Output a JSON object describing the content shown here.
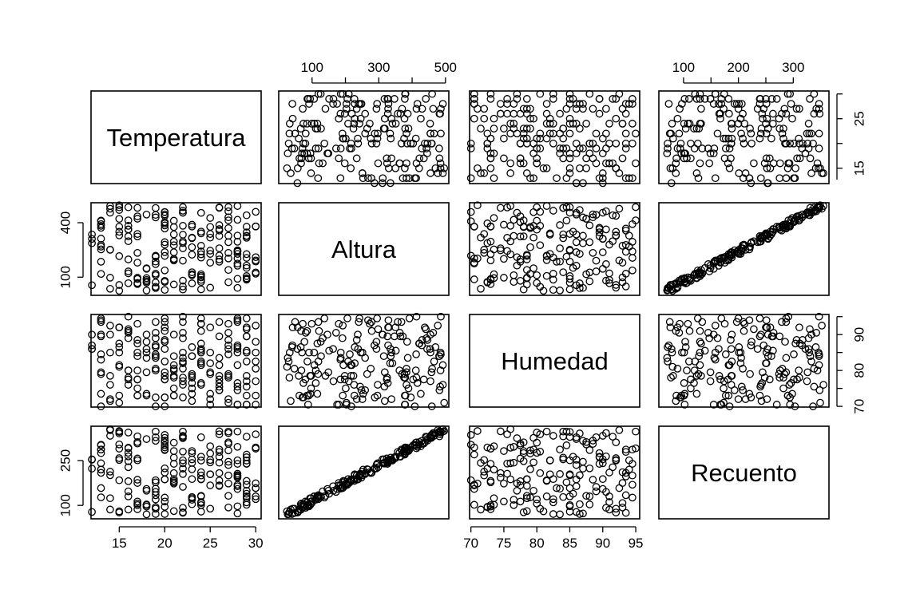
{
  "chart_data": {
    "type": "scatter",
    "subtype": "scatterplot-matrix",
    "title": "",
    "variables": [
      {
        "name": "Temperatura",
        "range": [
          11.9,
          30.6
        ],
        "ticks": [
          15,
          20,
          25,
          30
        ]
      },
      {
        "name": "Altura",
        "range": [
          0,
          510
        ],
        "ticks": [
          100,
          200,
          300,
          400,
          500
        ],
        "tick_labels": [
          "100",
          "",
          "300",
          "",
          "500"
        ],
        "left_ticks": [
          100,
          400
        ]
      },
      {
        "name": "Humedad",
        "range": [
          69.8,
          95.6
        ],
        "ticks": [
          70,
          75,
          80,
          85,
          90,
          95
        ]
      },
      {
        "name": "Recuento",
        "range": [
          55,
          365
        ],
        "ticks": [
          100,
          150,
          200,
          250,
          300
        ],
        "tick_labels": [
          "100",
          "",
          "200",
          "",
          "300"
        ],
        "left_ticks": [
          100,
          250
        ]
      }
    ],
    "axis_placement": {
      "bottom": [
        "Temperatura",
        "Humedad"
      ],
      "top": [
        "Altura",
        "Recuento"
      ],
      "left": [
        "Altura",
        "Recuento"
      ],
      "right": [
        "Temperatura",
        "Humedad"
      ]
    },
    "n_points": 200,
    "marker": "open-circle",
    "grid": false,
    "legend": "none",
    "relationships": {
      "Altura~Recuento": "strong positive linear (Recuento ≈ 0.6 × Altura + 55)",
      "other pairs": "no visible correlation"
    },
    "colors": {
      "points": "#000000",
      "frame": "#000000",
      "background": "#ffffff"
    }
  }
}
